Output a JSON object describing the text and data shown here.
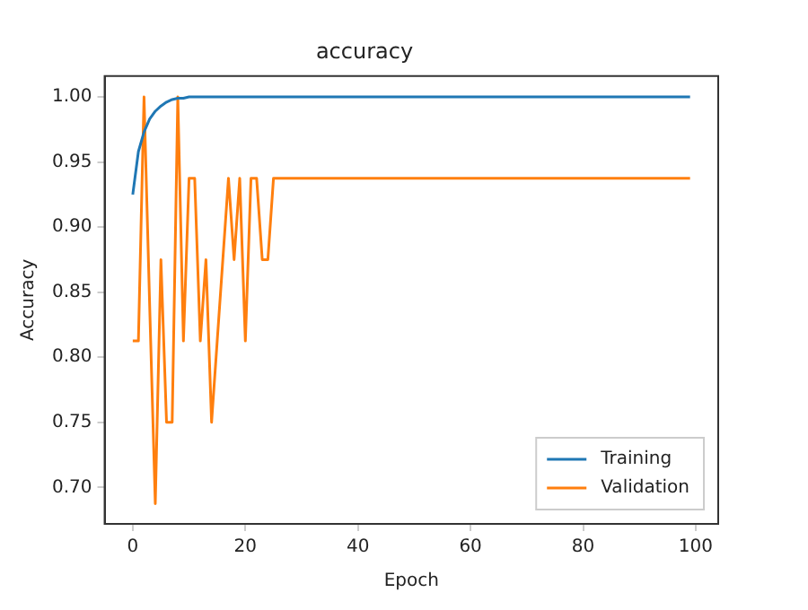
{
  "chart_data": {
    "type": "line",
    "title": "accuracy",
    "xlabel": "Epoch",
    "ylabel": "Accuracy",
    "x": [
      0,
      1,
      2,
      3,
      4,
      5,
      6,
      7,
      8,
      9,
      10,
      11,
      12,
      13,
      14,
      15,
      16,
      17,
      18,
      19,
      20,
      21,
      22,
      23,
      24,
      25,
      26,
      27,
      28,
      29,
      30,
      31,
      32,
      33,
      34,
      35,
      36,
      37,
      38,
      39,
      40,
      41,
      42,
      43,
      44,
      45,
      46,
      47,
      48,
      49,
      50,
      51,
      52,
      53,
      54,
      55,
      56,
      57,
      58,
      59,
      60,
      61,
      62,
      63,
      64,
      65,
      66,
      67,
      68,
      69,
      70,
      71,
      72,
      73,
      74,
      75,
      76,
      77,
      78,
      79,
      80,
      81,
      82,
      83,
      84,
      85,
      86,
      87,
      88,
      89,
      90,
      91,
      92,
      93,
      94,
      95,
      96,
      97,
      98,
      99
    ],
    "series": [
      {
        "name": "Training",
        "color": "#1f77b4",
        "values": [
          0.925,
          0.958,
          0.973,
          0.983,
          0.989,
          0.993,
          0.996,
          0.998,
          0.999,
          0.999,
          1,
          1,
          1,
          1,
          1,
          1,
          1,
          1,
          1,
          1,
          1,
          1,
          1,
          1,
          1,
          1,
          1,
          1,
          1,
          1,
          1,
          1,
          1,
          1,
          1,
          1,
          1,
          1,
          1,
          1,
          1,
          1,
          1,
          1,
          1,
          1,
          1,
          1,
          1,
          1,
          1,
          1,
          1,
          1,
          1,
          1,
          1,
          1,
          1,
          1,
          1,
          1,
          1,
          1,
          1,
          1,
          1,
          1,
          1,
          1,
          1,
          1,
          1,
          1,
          1,
          1,
          1,
          1,
          1,
          1,
          1,
          1,
          1,
          1,
          1,
          1,
          1,
          1,
          1,
          1,
          1,
          1,
          1,
          1,
          1,
          1,
          1,
          1,
          1,
          1
        ]
      },
      {
        "name": "Validation",
        "color": "#ff7f0e",
        "values": [
          0.8125,
          0.8125,
          1,
          0.84,
          0.6875,
          0.875,
          0.75,
          0.75,
          1,
          0.8125,
          0.9375,
          0.9375,
          0.8125,
          0.875,
          0.75,
          0.8125,
          0.875,
          0.9375,
          0.875,
          0.9375,
          0.8125,
          0.9375,
          0.9375,
          0.875,
          0.875,
          0.9375,
          0.9375,
          0.9375,
          0.9375,
          0.9375,
          0.9375,
          0.9375,
          0.9375,
          0.9375,
          0.9375,
          0.9375,
          0.9375,
          0.9375,
          0.9375,
          0.9375,
          0.9375,
          0.9375,
          0.9375,
          0.9375,
          0.9375,
          0.9375,
          0.9375,
          0.9375,
          0.9375,
          0.9375,
          0.9375,
          0.9375,
          0.9375,
          0.9375,
          0.9375,
          0.9375,
          0.9375,
          0.9375,
          0.9375,
          0.9375,
          0.9375,
          0.9375,
          0.9375,
          0.9375,
          0.9375,
          0.9375,
          0.9375,
          0.9375,
          0.9375,
          0.9375,
          0.9375,
          0.9375,
          0.9375,
          0.9375,
          0.9375,
          0.9375,
          0.9375,
          0.9375,
          0.9375,
          0.9375,
          0.9375,
          0.9375,
          0.9375,
          0.9375,
          0.9375,
          0.9375,
          0.9375,
          0.9375,
          0.9375,
          0.9375,
          0.9375,
          0.9375,
          0.9375,
          0.9375,
          0.9375,
          0.9375,
          0.9375,
          0.9375,
          0.9375,
          0.9375
        ]
      }
    ],
    "xlim": [
      -5,
      104
    ],
    "xticks": [
      0,
      20,
      40,
      60,
      80,
      100
    ],
    "ylim": [
      0.672,
      1.016
    ],
    "yticks": [
      {
        "value": 0.7,
        "label": "0.70"
      },
      {
        "value": 0.75,
        "label": "0.75"
      },
      {
        "value": 0.8,
        "label": "0.80"
      },
      {
        "value": 0.85,
        "label": "0.85"
      },
      {
        "value": 0.9,
        "label": "0.90"
      },
      {
        "value": 0.95,
        "label": "0.95"
      },
      {
        "value": 1,
        "label": "1.00"
      }
    ],
    "grid": false,
    "legend": "bottom right",
    "marker": "none",
    "line_style": "solid"
  }
}
